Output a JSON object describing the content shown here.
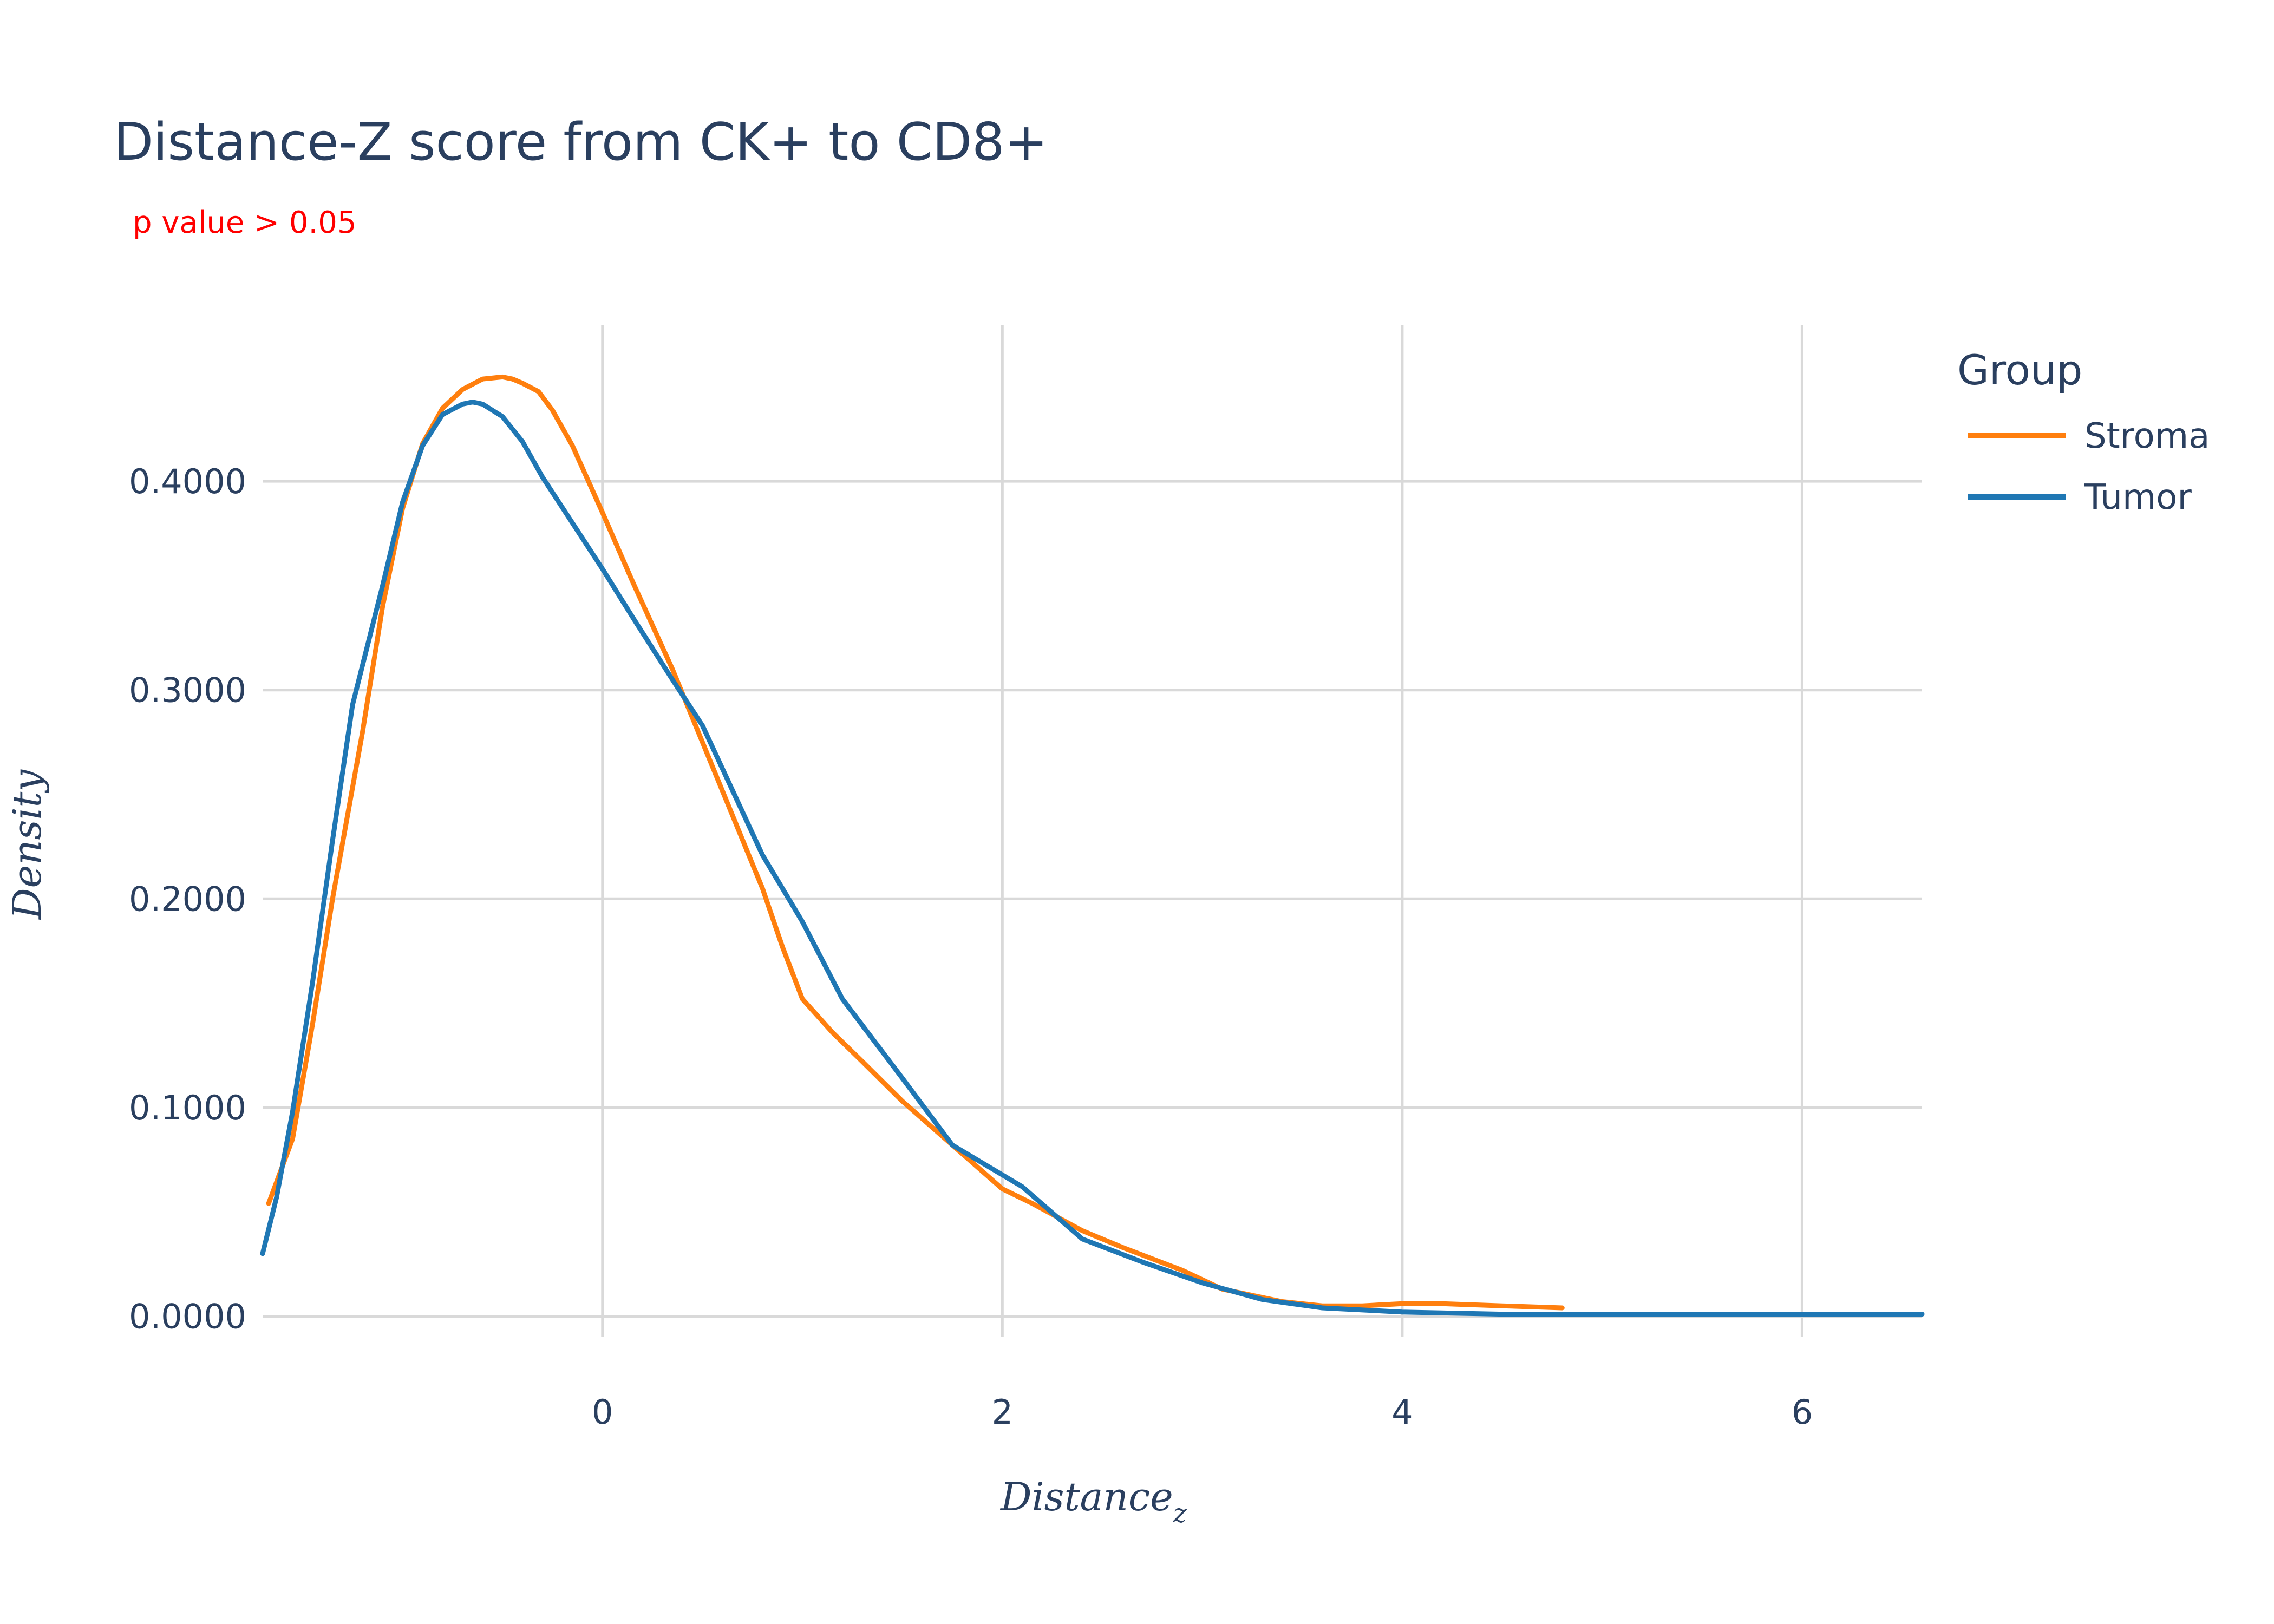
{
  "colors": {
    "title": "#2a3f5f",
    "subtitle": "#ff0000",
    "grid": "#d9d9d9"
  },
  "chart_data": {
    "type": "line",
    "title": "Distance-Z score from CK+ to CD8+",
    "subtitle": "p value > 0.05",
    "xlabel_base": "Distance",
    "xlabel_sub": "z",
    "ylabel": "Density",
    "xlim": [
      -1.7,
      6.6
    ],
    "ylim": [
      -0.01,
      0.475
    ],
    "xticks": [
      0,
      2,
      4,
      6
    ],
    "yticks": [
      0.0,
      0.1,
      0.2,
      0.3,
      0.4
    ],
    "ytick_labels": [
      "0.0000",
      "0.1000",
      "0.2000",
      "0.3000",
      "0.4000"
    ],
    "grid": true,
    "legend": {
      "title": "Group",
      "placement": "top-right"
    },
    "series": [
      {
        "name": "Stroma",
        "color": "#ff7f0e",
        "x": [
          -1.67,
          -1.55,
          -1.45,
          -1.35,
          -1.2,
          -1.1,
          -1.0,
          -0.9,
          -0.8,
          -0.7,
          -0.6,
          -0.5,
          -0.45,
          -0.4,
          -0.32,
          -0.25,
          -0.15,
          0.0,
          0.15,
          0.35,
          0.5,
          0.65,
          0.8,
          0.9,
          1.0,
          1.15,
          1.3,
          1.5,
          1.75,
          2.0,
          2.15,
          2.4,
          2.6,
          2.9,
          3.1,
          3.4,
          3.6,
          3.8,
          4.0,
          4.2,
          4.5,
          4.8
        ],
        "y": [
          0.054,
          0.085,
          0.14,
          0.2,
          0.28,
          0.34,
          0.387,
          0.418,
          0.435,
          0.444,
          0.449,
          0.45,
          0.449,
          0.447,
          0.443,
          0.434,
          0.417,
          0.385,
          0.352,
          0.31,
          0.275,
          0.24,
          0.205,
          0.177,
          0.152,
          0.136,
          0.122,
          0.103,
          0.082,
          0.061,
          0.054,
          0.041,
          0.033,
          0.022,
          0.013,
          0.007,
          0.005,
          0.005,
          0.006,
          0.006,
          0.005,
          0.004
        ]
      },
      {
        "name": "Tumor",
        "color": "#1f77b4",
        "x": [
          -1.7,
          -1.63,
          -1.55,
          -1.45,
          -1.35,
          -1.25,
          -1.1,
          -1.0,
          -0.9,
          -0.8,
          -0.7,
          -0.65,
          -0.6,
          -0.5,
          -0.4,
          -0.3,
          -0.15,
          0.0,
          0.15,
          0.35,
          0.5,
          0.65,
          0.8,
          1.0,
          1.2,
          1.5,
          1.75,
          2.1,
          2.4,
          2.7,
          3.0,
          3.3,
          3.6,
          4.0,
          4.5,
          5.0,
          5.5,
          6.0,
          6.6
        ],
        "y": [
          0.03,
          0.057,
          0.098,
          0.16,
          0.228,
          0.293,
          0.35,
          0.39,
          0.417,
          0.432,
          0.437,
          0.438,
          0.437,
          0.431,
          0.419,
          0.402,
          0.38,
          0.358,
          0.335,
          0.305,
          0.283,
          0.252,
          0.221,
          0.189,
          0.152,
          0.114,
          0.082,
          0.062,
          0.037,
          0.026,
          0.016,
          0.008,
          0.004,
          0.002,
          0.001,
          0.001,
          0.001,
          0.001,
          0.001
        ]
      }
    ]
  }
}
